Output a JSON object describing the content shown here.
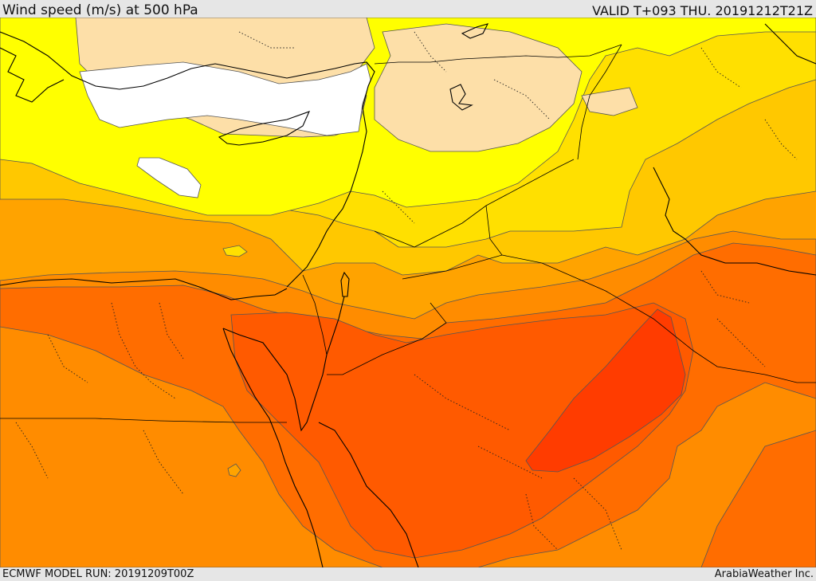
{
  "header": {
    "title": "Wind speed (m/s) at 500 hPa",
    "valid": "VALID T+093 THU. 20191212T21Z"
  },
  "footer": {
    "model_run": "ECMWF MODEL RUN: 20191209T00Z",
    "credit": "ArabiaWeather Inc."
  },
  "map": {
    "field": "wind speed at 500 hPa",
    "colors": {
      "white": "#ffffff",
      "tan": "#fddfa8",
      "yellow": "#ffff00",
      "gold": "#ffe000",
      "amber": "#ffc800",
      "orange_light": "#ffa300",
      "orange": "#ff8c00",
      "orange_dark": "#ff6d00",
      "red_orange": "#ff5a00",
      "red": "#ff3c00"
    }
  }
}
